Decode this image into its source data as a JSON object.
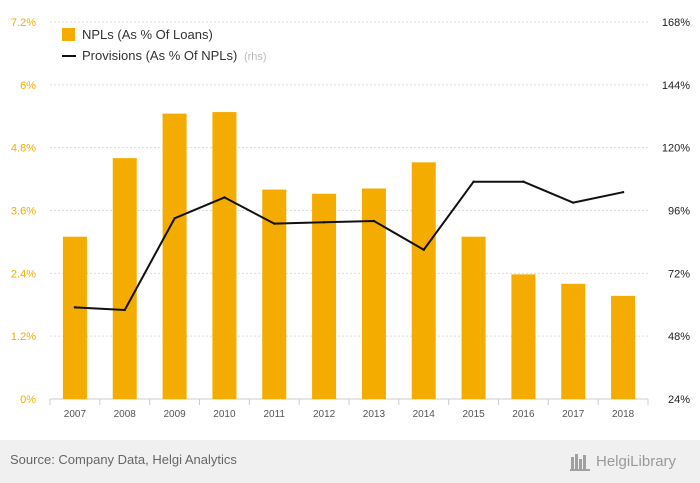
{
  "chart_data": {
    "type": "bar",
    "categories": [
      "2007",
      "2008",
      "2009",
      "2010",
      "2011",
      "2012",
      "2013",
      "2014",
      "2015",
      "2016",
      "2017",
      "2018"
    ],
    "series": [
      {
        "name": "NPLs (As % Of Loans)",
        "type": "bar",
        "axis": "left",
        "color": "#f5ac00",
        "values": [
          3.1,
          4.6,
          5.45,
          5.48,
          4.0,
          3.92,
          4.02,
          4.52,
          3.1,
          2.38,
          2.2,
          1.97
        ]
      },
      {
        "name": "Provisions (As % Of NPLs)",
        "type": "line",
        "axis": "right",
        "color": "#111111",
        "values": [
          59,
          58,
          93,
          101,
          91,
          91.5,
          92,
          81,
          107,
          107,
          99,
          103
        ]
      }
    ],
    "legend_rhs_suffix": "(rhs)",
    "ylim": [
      0,
      7.2
    ],
    "yticks": [
      "0%",
      "1.2%",
      "2.4%",
      "3.6%",
      "4.8%",
      "6%",
      "7.2%"
    ],
    "y2lim": [
      24,
      168
    ],
    "y2ticks": [
      "24%",
      "48%",
      "72%",
      "96%",
      "120%",
      "144%",
      "168%"
    ],
    "grid": true,
    "legend_position": "top-left"
  },
  "footer": {
    "source": "Source: Company Data, Helgi Analytics",
    "brand": "HelgiLibrary"
  }
}
